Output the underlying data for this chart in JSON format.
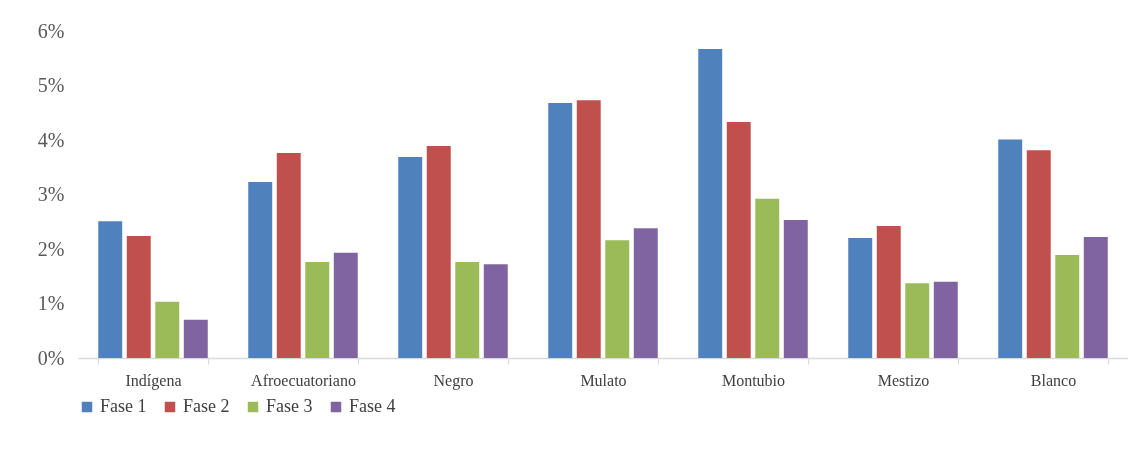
{
  "chart_data": {
    "type": "bar",
    "categories": [
      "Indígena",
      "Afroecuatoriano",
      "Negro",
      "Mulato",
      "Montubio",
      "Mestizo",
      "Blanco"
    ],
    "series": [
      {
        "name": "Fase 1",
        "color": "#4f81bd",
        "values": [
          2.51,
          3.23,
          3.69,
          4.68,
          5.67,
          2.2,
          4.01
        ]
      },
      {
        "name": "Fase 2",
        "color": "#c0504d",
        "values": [
          2.24,
          3.76,
          3.89,
          4.73,
          4.33,
          2.42,
          3.81
        ]
      },
      {
        "name": "Fase 3",
        "color": "#9bbb59",
        "values": [
          1.03,
          1.76,
          1.76,
          2.16,
          2.92,
          1.37,
          1.89
        ]
      },
      {
        "name": "Fase 4",
        "color": "#8064a2",
        "values": [
          0.7,
          1.93,
          1.72,
          2.38,
          2.53,
          1.4,
          2.22
        ]
      }
    ],
    "ylim": [
      0,
      6
    ],
    "yticks": [
      {
        "value": 0,
        "label": "0%"
      },
      {
        "value": 1,
        "label": "1%"
      },
      {
        "value": 2,
        "label": "2%"
      },
      {
        "value": 3,
        "label": "3%"
      },
      {
        "value": 4,
        "label": "4%"
      },
      {
        "value": 5,
        "label": "5%"
      },
      {
        "value": 6,
        "label": "6%"
      }
    ],
    "grid": false,
    "legend": "bottom"
  }
}
